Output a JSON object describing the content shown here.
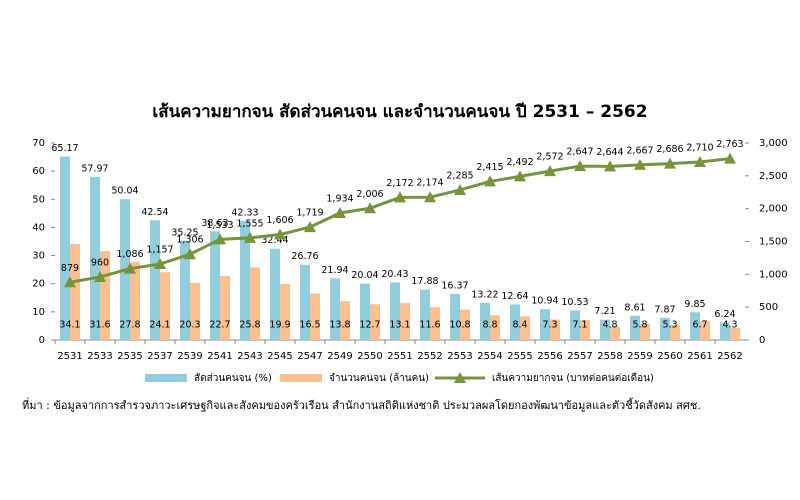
{
  "chart_data": {
    "type": "bar",
    "title": "เส้นความยากจน สัดส่วนคนจน และจำนวนคนจน ปี 2531 – 2562",
    "categories": [
      "2531",
      "2533",
      "2535",
      "2537",
      "2539",
      "2541",
      "2543",
      "2545",
      "2547",
      "2549",
      "2550",
      "2551",
      "2552",
      "2553",
      "2554",
      "2555",
      "2556",
      "2557",
      "2558",
      "2559",
      "2560",
      "2561",
      "2562"
    ],
    "series": [
      {
        "name": "สัดส่วนคนจน (%)",
        "type": "bar",
        "color": "#92cddc",
        "values": [
          65.17,
          57.97,
          50.04,
          42.54,
          35.25,
          38.63,
          42.33,
          32.44,
          26.76,
          21.94,
          20.04,
          20.43,
          17.88,
          16.37,
          13.22,
          12.64,
          10.94,
          10.53,
          7.21,
          8.61,
          7.87,
          9.85,
          6.24
        ]
      },
      {
        "name": "จำนวนคนจน (ล้านคน)",
        "type": "bar",
        "color": "#fac090",
        "values": [
          34.1,
          31.6,
          27.8,
          24.1,
          20.3,
          22.7,
          25.8,
          19.9,
          16.5,
          13.8,
          12.7,
          13.1,
          11.6,
          10.8,
          8.8,
          8.4,
          7.3,
          7.1,
          4.8,
          5.8,
          5.3,
          6.7,
          4.3
        ]
      },
      {
        "name": "เส้นความยากจน (บาทต่อคนต่อเดือน)",
        "type": "line",
        "axis": "y2",
        "color": "#77933c",
        "values": [
          879,
          960,
          1086,
          1157,
          1306,
          1533,
          1555,
          1606,
          1719,
          1934,
          2006,
          2172,
          2174,
          2285,
          2415,
          2492,
          2572,
          2647,
          2644,
          2667,
          2686,
          2710,
          2763
        ],
        "value_labels": [
          "879",
          "960",
          "1,086",
          "1,157",
          "1,306",
          "1,533",
          "1,555",
          "1,606",
          "1,719",
          "1,934",
          "2,006",
          "2,172",
          "2,174",
          "2,285",
          "2,415",
          "2,492",
          "2,572",
          "2,647",
          "2,644",
          "2,667",
          "2,686",
          "2,710",
          "2,763"
        ]
      }
    ],
    "ylim": [
      0,
      70
    ],
    "yticks": [
      0,
      10,
      20,
      30,
      40,
      50,
      60,
      70
    ],
    "y2lim": [
      0,
      3000
    ],
    "y2ticks": [
      0,
      500,
      {
        "value": 1000,
        "label": "1,000"
      },
      {
        "value": 1500,
        "label": "1,500"
      },
      {
        "value": 2000,
        "label": "2,000"
      },
      {
        "value": 2500,
        "label": "2,500"
      },
      {
        "value": 3000,
        "label": "3,000"
      }
    ],
    "legend": "bottom",
    "source": "ที่มา : ข้อมูลจากการสำรวจภาวะเศรษฐกิจและสังคมของครัวเรือน สำนักงานสถิติแห่งชาติ ประมวลผลโดยกองพัฒนาข้อมูลและตัวชี้วัดสังคม สศช."
  }
}
